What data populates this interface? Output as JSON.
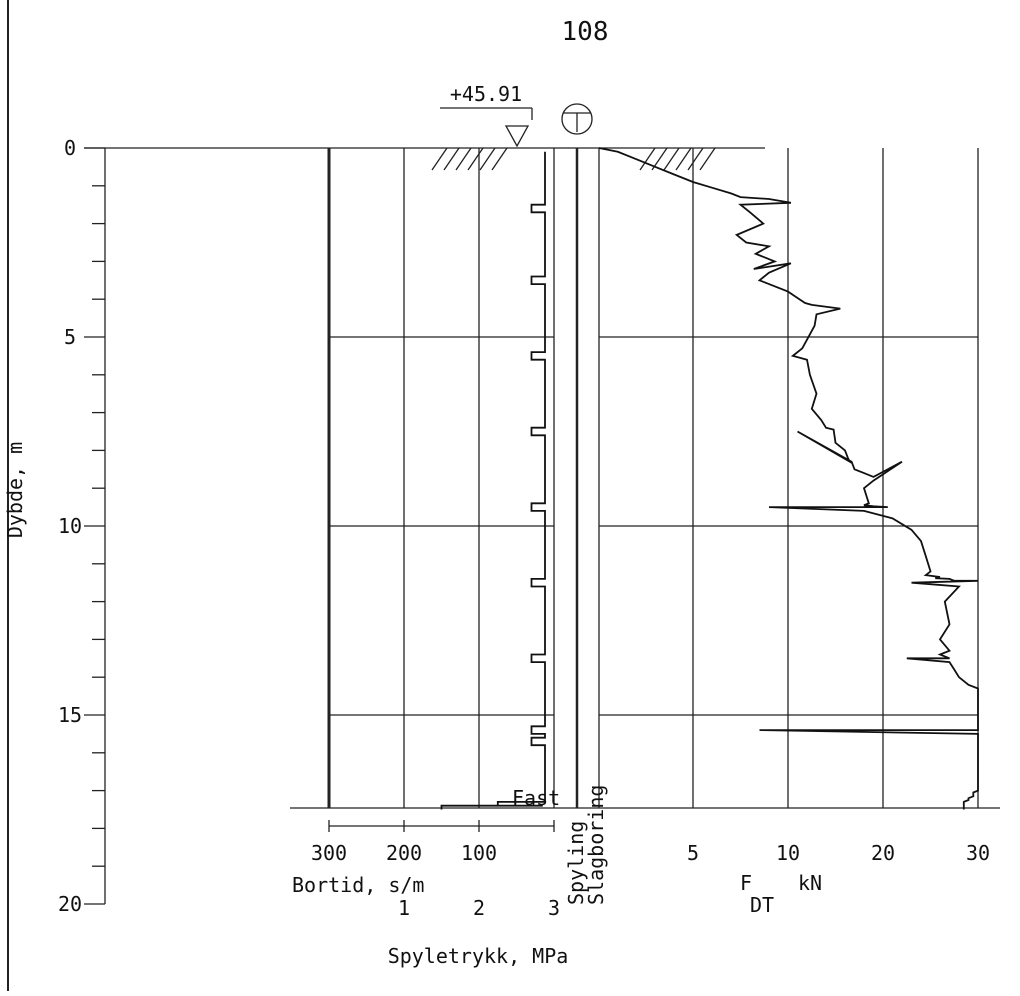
{
  "chart_data": {
    "type": "line",
    "title": "108",
    "elevation_label": "+45.91",
    "groundwater_symbol": "T",
    "depth_axis": {
      "label": "Dybde, m",
      "ticks": [
        0,
        5,
        10,
        15,
        20
      ],
      "lim": [
        0,
        20
      ]
    },
    "bortid_axis": {
      "label": "Bortid, s/m",
      "ticks": [
        "300",
        "200",
        "100"
      ],
      "lim": [
        0,
        300
      ]
    },
    "spyletrykk_axis": {
      "label": "Spyletrykk, MPa",
      "ticks": [
        "1",
        "2",
        "3"
      ],
      "lim": [
        0,
        3
      ]
    },
    "force_axis": {
      "label_main": "F",
      "label_sub": "DT",
      "unit": "kN",
      "ticks": [
        "5",
        "10",
        "20",
        "30"
      ],
      "lim": [
        0,
        30
      ]
    },
    "column_labels": [
      "Spyling",
      "Slagboring"
    ],
    "stop_label": "Fast",
    "final_depth": 17.5,
    "series": [
      {
        "name": "Bortid",
        "x": [
          12,
          12,
          12,
          12,
          30,
          30,
          12,
          12,
          30,
          30,
          12,
          12,
          30,
          30,
          12,
          12,
          30,
          30,
          12,
          12,
          30,
          30,
          12,
          12,
          30,
          30,
          12,
          12,
          30,
          30,
          12,
          12,
          30,
          30,
          12,
          12,
          30,
          30,
          12,
          12,
          75,
          75,
          15,
          15,
          150,
          150
        ],
        "y": [
          0.1,
          0.2,
          0.8,
          1.5,
          1.5,
          1.7,
          1.7,
          3.4,
          3.4,
          3.6,
          3.6,
          5.4,
          5.4,
          5.6,
          5.6,
          7.4,
          7.4,
          7.6,
          7.6,
          9.4,
          9.4,
          9.6,
          9.6,
          11.4,
          11.4,
          11.6,
          11.6,
          13.4,
          13.4,
          13.6,
          13.6,
          15.3,
          15.3,
          15.5,
          15.5,
          15.6,
          15.6,
          15.8,
          15.8,
          17.3,
          17.3,
          17.4,
          17.4,
          17.4,
          17.4,
          17.5
        ]
      },
      {
        "name": "FDT",
        "x": [
          0,
          1,
          2,
          3,
          4,
          5,
          6,
          7,
          7.5,
          9,
          10.3,
          7.5,
          8,
          8.7,
          7.3,
          7.8,
          9,
          8.3,
          9.3,
          8.2,
          10.3,
          9,
          8.5,
          10,
          11.2,
          11.8,
          12.5,
          15.5,
          13,
          12.8,
          11.5,
          10.5,
          12,
          12.3,
          13,
          12.5,
          13.5,
          14,
          14.8,
          15,
          16,
          16.3,
          16.5,
          11,
          16.7,
          17,
          18,
          19,
          22,
          19,
          18,
          18.5,
          18,
          19,
          20.5,
          9,
          18,
          21,
          23,
          24,
          24.5,
          25,
          24.5,
          26,
          25.5,
          27,
          27.5,
          30,
          23,
          28,
          26.5,
          27,
          26,
          27,
          26,
          27,
          22.5,
          27,
          27.5,
          28,
          29,
          30,
          30,
          8.5,
          30,
          30,
          30,
          29.5,
          29.5,
          29.5,
          29,
          29,
          28.5,
          28.5
        ],
        "y": [
          0,
          0.1,
          0.3,
          0.5,
          0.7,
          0.9,
          1.05,
          1.2,
          1.3,
          1.35,
          1.45,
          1.5,
          1.7,
          2.0,
          2.3,
          2.5,
          2.6,
          2.8,
          3.0,
          3.2,
          3.05,
          3.3,
          3.5,
          3.8,
          4.0,
          4.1,
          4.15,
          4.25,
          4.4,
          4.7,
          5.3,
          5.5,
          5.6,
          6.0,
          6.5,
          6.9,
          7.2,
          7.4,
          7.45,
          7.8,
          8.0,
          8.2,
          8.3,
          7.5,
          8.3,
          8.5,
          8.6,
          8.7,
          8.3,
          8.8,
          9.0,
          9.4,
          9.45,
          9.48,
          9.5,
          9.5,
          9.6,
          9.8,
          10.1,
          10.4,
          10.8,
          11.2,
          11.3,
          11.35,
          11.38,
          11.4,
          11.45,
          11.45,
          11.5,
          11.6,
          12.0,
          12.6,
          13.0,
          13.3,
          13.4,
          13.5,
          13.5,
          13.6,
          13.8,
          14.0,
          14.2,
          14.3,
          15.4,
          15.4,
          15.5,
          16.0,
          17.0,
          17.05,
          17.1,
          17.15,
          17.2,
          17.25,
          17.3,
          17.5
        ]
      }
    ]
  }
}
